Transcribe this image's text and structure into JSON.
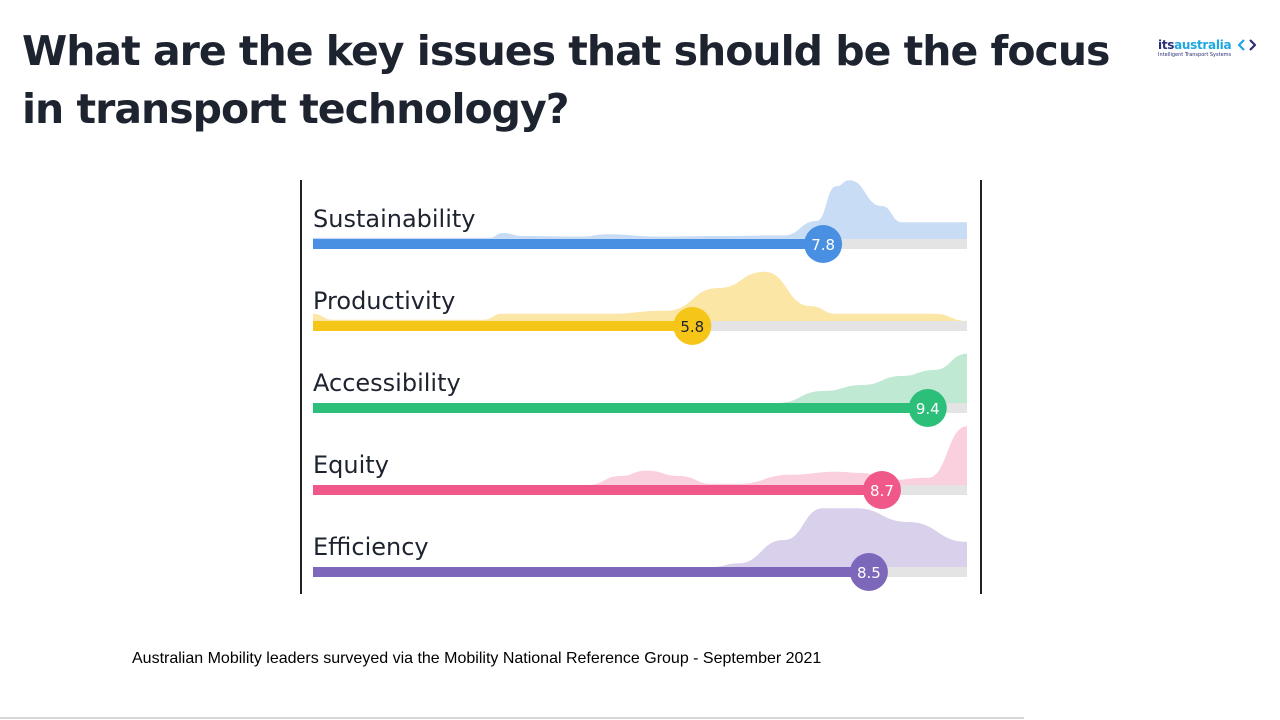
{
  "slide": {
    "title": "What are the key issues that should be the focus in transport technology?",
    "source": "Australian Mobility leaders surveyed via the Mobility National Reference Group - September 2021"
  },
  "logo": {
    "brand_prefix": "its",
    "brand_suffix": "australia",
    "tagline": "Intelligent Transport Systems",
    "icon": "chevron-pair-icon"
  },
  "chart_data": {
    "type": "bar",
    "orientation": "horizontal",
    "xlim": [
      0,
      10
    ],
    "categories": [
      "Sustainability",
      "Productivity",
      "Accessibility",
      "Equity",
      "Efficiency"
    ],
    "values": [
      7.8,
      5.8,
      9.4,
      8.7,
      8.5
    ],
    "value_labels": [
      "7.8",
      "5.8",
      "9.4",
      "8.7",
      "8.5"
    ],
    "colors": {
      "Sustainability": "#4a90e2",
      "Productivity": "#f5c518",
      "Accessibility": "#2bbf7a",
      "Equity": "#f0588a",
      "Efficiency": "#7d67bb"
    },
    "distribution_colors": {
      "Sustainability": "#c9dcf6",
      "Productivity": "#fbe6a6",
      "Accessibility": "#bfe9d3",
      "Equity": "#fbd0de",
      "Efficiency": "#d9d0ec"
    },
    "track_color": "#e4e4e4",
    "distributions": {
      "Sustainability": [
        [
          0,
          0.02
        ],
        [
          2.7,
          0.02
        ],
        [
          2.9,
          0.1
        ],
        [
          3.2,
          0.05
        ],
        [
          4.1,
          0.04
        ],
        [
          4.5,
          0.08
        ],
        [
          5.3,
          0.04
        ],
        [
          6.2,
          0.05
        ],
        [
          7.2,
          0.06
        ],
        [
          7.7,
          0.3
        ],
        [
          8,
          0.88
        ],
        [
          8.2,
          0.98
        ],
        [
          8.7,
          0.55
        ],
        [
          9,
          0.28
        ],
        [
          10,
          0.28
        ]
      ],
      "Productivity": [
        [
          0,
          0.12
        ],
        [
          0.3,
          0.02
        ],
        [
          2.6,
          0.02
        ],
        [
          2.9,
          0.12
        ],
        [
          4.5,
          0.12
        ],
        [
          5.4,
          0.17
        ],
        [
          6.2,
          0.55
        ],
        [
          6.9,
          0.82
        ],
        [
          7.6,
          0.25
        ],
        [
          8,
          0.12
        ],
        [
          9.5,
          0.12
        ],
        [
          10,
          0.0
        ]
      ],
      "Accessibility": [
        [
          0,
          0.0
        ],
        [
          7.1,
          0.0
        ],
        [
          7.8,
          0.2
        ],
        [
          8.4,
          0.3
        ],
        [
          9,
          0.45
        ],
        [
          9.5,
          0.55
        ],
        [
          10,
          0.82
        ]
      ],
      "Equity": [
        [
          0,
          0.0
        ],
        [
          4.2,
          0.0
        ],
        [
          4.7,
          0.15
        ],
        [
          5.1,
          0.24
        ],
        [
          5.6,
          0.15
        ],
        [
          6.1,
          0.02
        ],
        [
          6.5,
          0.02
        ],
        [
          7.3,
          0.17
        ],
        [
          8,
          0.22
        ],
        [
          8.4,
          0.2
        ],
        [
          8.8,
          0.08
        ],
        [
          9.4,
          0.12
        ],
        [
          10,
          0.98
        ]
      ],
      "Efficiency": [
        [
          0,
          0.0
        ],
        [
          6.1,
          0.0
        ],
        [
          6.5,
          0.06
        ],
        [
          7.2,
          0.45
        ],
        [
          7.8,
          0.98
        ],
        [
          8.3,
          0.98
        ],
        [
          9.1,
          0.75
        ],
        [
          10,
          0.42
        ]
      ]
    }
  }
}
